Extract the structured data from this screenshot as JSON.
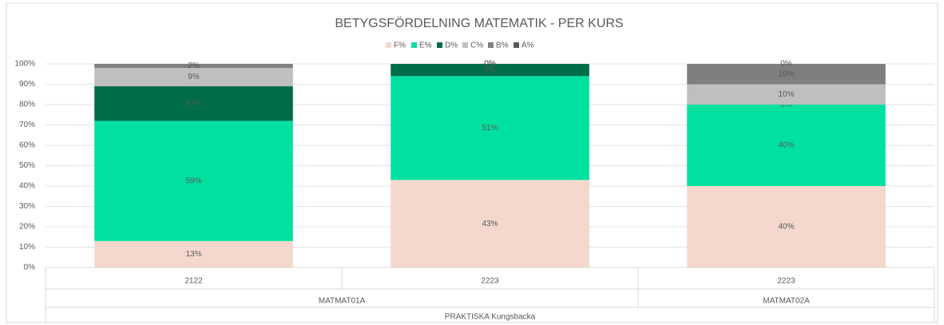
{
  "chart_data": {
    "type": "stacked_bar",
    "title": "BETYGSFÖRDELNING MATEMATIK - PER KURS",
    "categories": [
      "2122",
      "2223",
      "2223"
    ],
    "category_groups": [
      "MATMAT01A",
      "MATMAT01A",
      "MATMAT02A"
    ],
    "x_label": "PRAKTISKA Kungsbacka",
    "ylim": [
      0,
      100
    ],
    "yticks": [
      {
        "value": 0,
        "label": "0%"
      },
      {
        "value": 10,
        "label": "10%"
      },
      {
        "value": 20,
        "label": "20%"
      },
      {
        "value": 30,
        "label": "30%"
      },
      {
        "value": 40,
        "label": "40%"
      },
      {
        "value": 50,
        "label": "50%"
      },
      {
        "value": 60,
        "label": "60%"
      },
      {
        "value": 70,
        "label": "70%"
      },
      {
        "value": 80,
        "label": "80%"
      },
      {
        "value": 90,
        "label": "90%"
      },
      {
        "value": 100,
        "label": "100%"
      }
    ],
    "grid": true,
    "legend": "top",
    "series": [
      {
        "name": "F%",
        "color": "#f4d8ce",
        "values": [
          13,
          43,
          40
        ],
        "value_labels": [
          "13%",
          "43%",
          "40%"
        ]
      },
      {
        "name": "E%",
        "color": "#00e0a0",
        "values": [
          59,
          51,
          40
        ],
        "value_labels": [
          "59%",
          "51%",
          "40%"
        ]
      },
      {
        "name": "D%",
        "color": "#006d4a",
        "values": [
          17,
          6,
          0
        ],
        "value_labels": [
          "17%",
          "6%",
          "0%"
        ]
      },
      {
        "name": "C%",
        "color": "#bfbfbf",
        "values": [
          9,
          0,
          10
        ],
        "value_labels": [
          "9%",
          "0%",
          "10%"
        ]
      },
      {
        "name": "B%",
        "color": "#7f7f7f",
        "values": [
          2,
          0,
          10
        ],
        "value_labels": [
          "2%",
          "0%",
          "10%"
        ]
      },
      {
        "name": "A%",
        "color": "#595959",
        "values": [
          0,
          0,
          0
        ],
        "value_labels": [
          null,
          null,
          "0%"
        ]
      }
    ]
  }
}
